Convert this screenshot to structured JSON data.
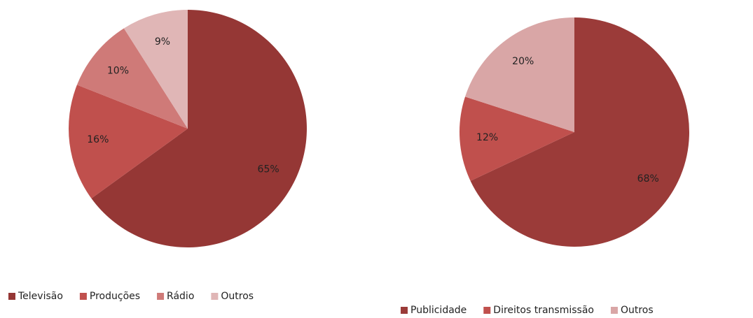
{
  "chart_data": [
    {
      "type": "pie",
      "categories": [
        "Televisão",
        "Produções",
        "Rádio",
        "Outros"
      ],
      "values": [
        65,
        16,
        10,
        9
      ],
      "value_labels": [
        "65%",
        "16%",
        "10%",
        "9%"
      ],
      "colors": [
        "#953735",
        "#c0504d",
        "#cf7a78",
        "#e0b6b6"
      ]
    },
    {
      "type": "pie",
      "categories": [
        "Publicidade",
        "Direitos transmissão",
        "Outros"
      ],
      "values": [
        68,
        12,
        20
      ],
      "value_labels": [
        "68%",
        "12%",
        "20%"
      ],
      "colors": [
        "#9b3b39",
        "#c0504d",
        "#d9a6a6"
      ]
    }
  ]
}
